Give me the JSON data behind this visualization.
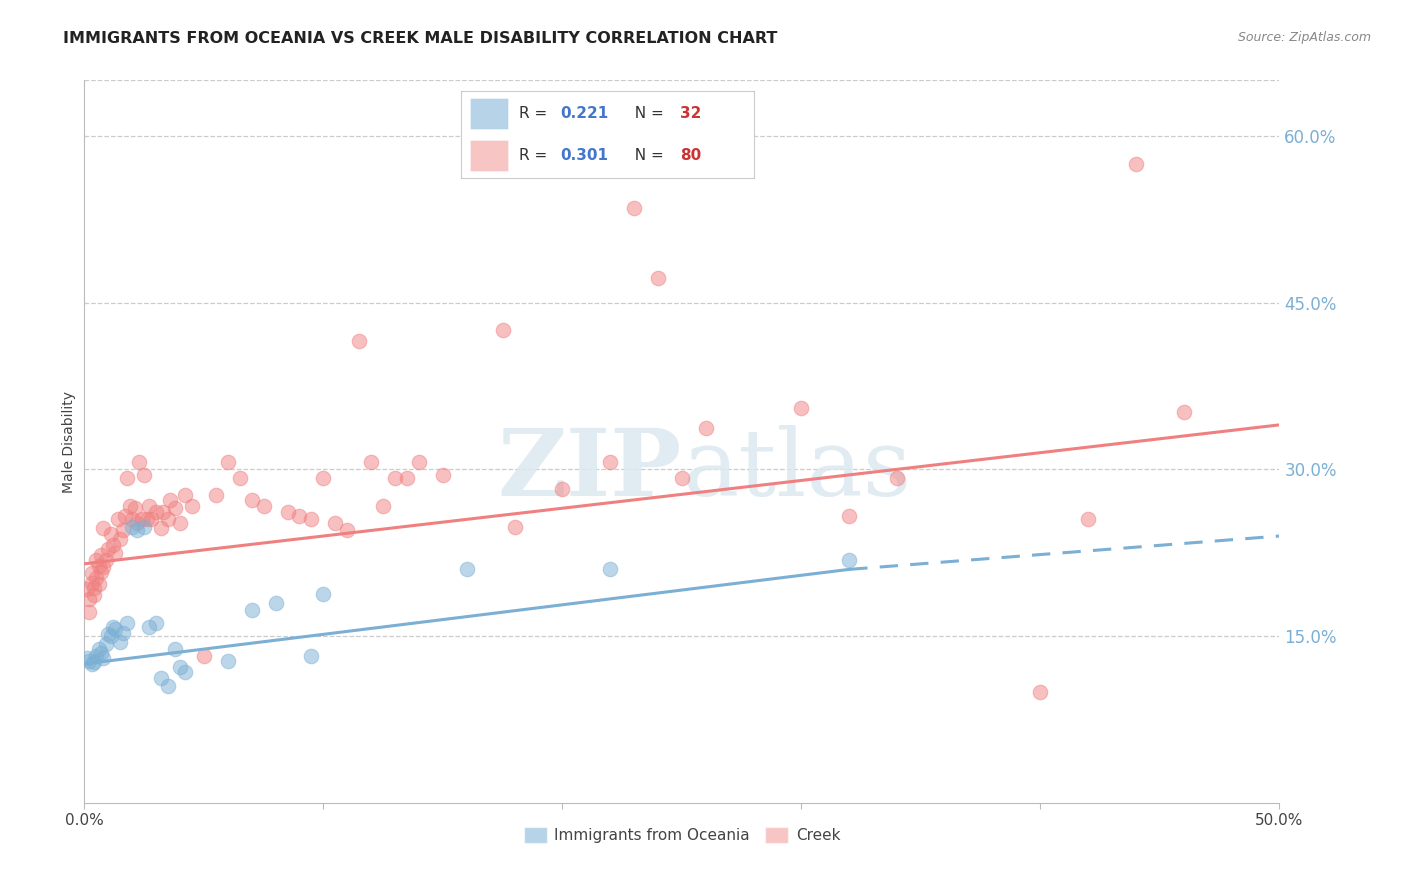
{
  "title": "IMMIGRANTS FROM OCEANIA VS CREEK MALE DISABILITY CORRELATION CHART",
  "source": "Source: ZipAtlas.com",
  "ylabel": "Male Disability",
  "xlim": [
    0.0,
    0.5
  ],
  "ylim": [
    0.0,
    0.65
  ],
  "x_ticks": [
    0.0,
    0.1,
    0.2,
    0.3,
    0.4,
    0.5
  ],
  "x_tick_labels": [
    "0.0%",
    "",
    "",
    "",
    "",
    "50.0%"
  ],
  "y_ticks_right": [
    0.15,
    0.3,
    0.45,
    0.6
  ],
  "y_tick_labels_right": [
    "15.0%",
    "30.0%",
    "45.0%",
    "60.0%"
  ],
  "legend_labels_bottom": [
    "Immigrants from Oceania",
    "Creek"
  ],
  "blue_color": "#7bafd4",
  "pink_color": "#f08080",
  "watermark": "ZIPatlas",
  "blue_points": [
    [
      0.001,
      0.13
    ],
    [
      0.002,
      0.128
    ],
    [
      0.003,
      0.125
    ],
    [
      0.004,
      0.127
    ],
    [
      0.005,
      0.132
    ],
    [
      0.006,
      0.138
    ],
    [
      0.007,
      0.135
    ],
    [
      0.008,
      0.13
    ],
    [
      0.009,
      0.143
    ],
    [
      0.01,
      0.152
    ],
    [
      0.011,
      0.15
    ],
    [
      0.012,
      0.158
    ],
    [
      0.013,
      0.156
    ],
    [
      0.015,
      0.145
    ],
    [
      0.016,
      0.153
    ],
    [
      0.018,
      0.162
    ],
    [
      0.02,
      0.248
    ],
    [
      0.022,
      0.245
    ],
    [
      0.025,
      0.248
    ],
    [
      0.027,
      0.158
    ],
    [
      0.03,
      0.162
    ],
    [
      0.032,
      0.112
    ],
    [
      0.035,
      0.105
    ],
    [
      0.038,
      0.138
    ],
    [
      0.04,
      0.122
    ],
    [
      0.042,
      0.118
    ],
    [
      0.06,
      0.128
    ],
    [
      0.07,
      0.173
    ],
    [
      0.08,
      0.18
    ],
    [
      0.095,
      0.132
    ],
    [
      0.1,
      0.188
    ],
    [
      0.16,
      0.21
    ],
    [
      0.22,
      0.21
    ],
    [
      0.32,
      0.218
    ]
  ],
  "pink_points": [
    [
      0.001,
      0.192
    ],
    [
      0.002,
      0.183
    ],
    [
      0.002,
      0.172
    ],
    [
      0.003,
      0.207
    ],
    [
      0.003,
      0.198
    ],
    [
      0.004,
      0.193
    ],
    [
      0.004,
      0.187
    ],
    [
      0.005,
      0.218
    ],
    [
      0.005,
      0.202
    ],
    [
      0.006,
      0.213
    ],
    [
      0.006,
      0.197
    ],
    [
      0.007,
      0.208
    ],
    [
      0.007,
      0.223
    ],
    [
      0.008,
      0.212
    ],
    [
      0.008,
      0.247
    ],
    [
      0.009,
      0.218
    ],
    [
      0.01,
      0.228
    ],
    [
      0.011,
      0.242
    ],
    [
      0.012,
      0.232
    ],
    [
      0.013,
      0.225
    ],
    [
      0.014,
      0.255
    ],
    [
      0.015,
      0.237
    ],
    [
      0.016,
      0.245
    ],
    [
      0.017,
      0.258
    ],
    [
      0.018,
      0.292
    ],
    [
      0.019,
      0.267
    ],
    [
      0.02,
      0.255
    ],
    [
      0.021,
      0.265
    ],
    [
      0.022,
      0.252
    ],
    [
      0.023,
      0.307
    ],
    [
      0.024,
      0.255
    ],
    [
      0.025,
      0.295
    ],
    [
      0.026,
      0.255
    ],
    [
      0.027,
      0.267
    ],
    [
      0.028,
      0.255
    ],
    [
      0.03,
      0.262
    ],
    [
      0.032,
      0.247
    ],
    [
      0.033,
      0.262
    ],
    [
      0.035,
      0.255
    ],
    [
      0.036,
      0.272
    ],
    [
      0.038,
      0.265
    ],
    [
      0.04,
      0.252
    ],
    [
      0.042,
      0.277
    ],
    [
      0.045,
      0.267
    ],
    [
      0.05,
      0.132
    ],
    [
      0.055,
      0.277
    ],
    [
      0.06,
      0.307
    ],
    [
      0.065,
      0.292
    ],
    [
      0.07,
      0.272
    ],
    [
      0.075,
      0.267
    ],
    [
      0.085,
      0.262
    ],
    [
      0.09,
      0.258
    ],
    [
      0.095,
      0.255
    ],
    [
      0.1,
      0.292
    ],
    [
      0.105,
      0.252
    ],
    [
      0.11,
      0.245
    ],
    [
      0.115,
      0.415
    ],
    [
      0.12,
      0.307
    ],
    [
      0.125,
      0.267
    ],
    [
      0.13,
      0.292
    ],
    [
      0.135,
      0.292
    ],
    [
      0.14,
      0.307
    ],
    [
      0.15,
      0.295
    ],
    [
      0.175,
      0.425
    ],
    [
      0.18,
      0.248
    ],
    [
      0.2,
      0.282
    ],
    [
      0.22,
      0.307
    ],
    [
      0.23,
      0.535
    ],
    [
      0.24,
      0.472
    ],
    [
      0.25,
      0.292
    ],
    [
      0.26,
      0.337
    ],
    [
      0.3,
      0.355
    ],
    [
      0.32,
      0.258
    ],
    [
      0.34,
      0.292
    ],
    [
      0.4,
      0.1
    ],
    [
      0.42,
      0.255
    ],
    [
      0.44,
      0.575
    ],
    [
      0.46,
      0.352
    ]
  ],
  "blue_line": {
    "x0": 0.0,
    "y0": 0.125,
    "x1": 0.32,
    "y1": 0.21
  },
  "pink_line": {
    "x0": 0.0,
    "y0": 0.215,
    "x1": 0.5,
    "y1": 0.34
  },
  "blue_dashed_line": {
    "x0": 0.32,
    "y0": 0.21,
    "x1": 0.5,
    "y1": 0.24
  },
  "grid_color": "#cccccc",
  "background_color": "#ffffff",
  "title_fontsize": 11.5,
  "axis_label_fontsize": 10,
  "tick_fontsize": 11
}
